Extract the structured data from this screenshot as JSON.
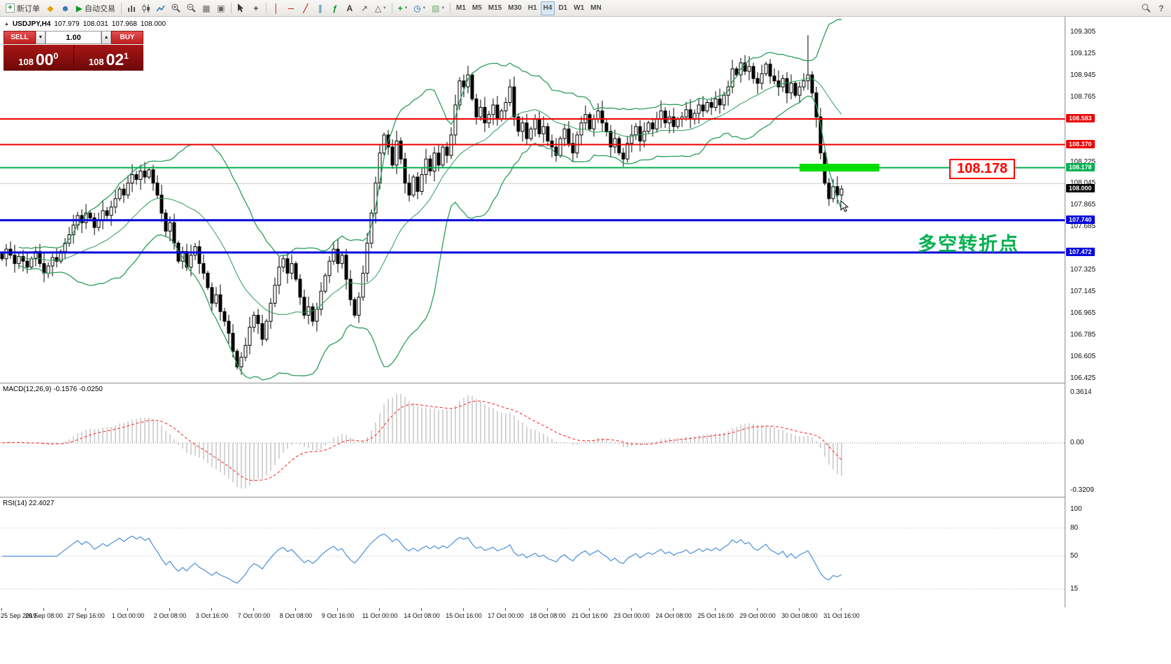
{
  "toolbar": {
    "new_order": "新订单",
    "auto_trading": "自动交易",
    "timeframes": [
      "M1",
      "M5",
      "M15",
      "M30",
      "H1",
      "H4",
      "D1",
      "W1",
      "MN"
    ],
    "active_timeframe": "H4"
  },
  "chart_header": {
    "symbol": "USDJPY,H4",
    "open": "107.979",
    "high": "108.031",
    "low": "107.968",
    "close": "108.000"
  },
  "trade_panel": {
    "sell_label": "SELL",
    "buy_label": "BUY",
    "volume": "1.00",
    "spin_down": "▼",
    "spin_up": "▲",
    "sell_price": {
      "big": "108",
      "pips": "00",
      "sup": "0"
    },
    "buy_price": {
      "big": "108",
      "pips": "02",
      "sup": "1"
    }
  },
  "annotations": {
    "price_label": "108.178",
    "note_text": "多空转折点"
  },
  "price_axis": {
    "labels": [
      "109.305",
      "109.125",
      "108.945",
      "108.765",
      "108.225",
      "108.045",
      "107.865",
      "107.685",
      "107.325",
      "107.145",
      "106.965",
      "106.785",
      "106.605",
      "106.425"
    ],
    "badges": [
      {
        "value": "108.583",
        "color": "#ee0000"
      },
      {
        "value": "108.370",
        "color": "#ee0000"
      },
      {
        "value": "108.178",
        "color": "#00b050"
      },
      {
        "value": "108.000",
        "color": "#000000"
      },
      {
        "value": "107.740",
        "color": "#0000dd"
      },
      {
        "value": "107.472",
        "color": "#0000dd"
      }
    ]
  },
  "macd_panel": {
    "label": "MACD(12,26,9) -0.1576 -0.0250",
    "axis_top": "0.3614",
    "axis_zero": "0.00",
    "axis_bottom": "-0.3209"
  },
  "rsi_panel": {
    "label": "RSI(14) 22.4027",
    "axis": [
      "100",
      "80",
      "50",
      "15"
    ],
    "levels": [
      80,
      50,
      15
    ]
  },
  "time_axis": [
    "25 Sep 2019",
    "26 Sep 08:00",
    "27 Sep 16:00",
    "1 Oct 00:00",
    "2 Oct 08:00",
    "3 Oct 16:00",
    "7 Oct 00:00",
    "8 Oct 08:00",
    "9 Oct 16:00",
    "11 Oct 00:00",
    "14 Oct 08:00",
    "15 Oct 16:00",
    "17 Oct 00:00",
    "18 Oct 08:00",
    "21 Oct 16:00",
    "23 Oct 00:00",
    "24 Oct 08:00",
    "25 Oct 16:00",
    "29 Oct 00:00",
    "30 Oct 08:00",
    "31 Oct 16:00"
  ],
  "colors": {
    "bull": "#ffffff",
    "bear": "#000000",
    "bollinger": "#2a9d5c",
    "macd_hist": "#a8a8a8",
    "macd_signal": "#ff2020",
    "rsi_line": "#4a90d9",
    "highlight": "#00dd00",
    "note_green": "#00b050",
    "label_red": "#ff0000"
  },
  "chart_data": {
    "type": "candlestick",
    "symbol": "USDJPY",
    "timeframe": "H4",
    "title": "USDJPY,H4 107.979 108.031 107.968 108.000",
    "y_range": {
      "min": 106.4,
      "max": 109.41
    },
    "closes": [
      107.42,
      107.5,
      107.45,
      107.38,
      107.44,
      107.4,
      107.35,
      107.42,
      107.48,
      107.38,
      107.3,
      107.36,
      107.43,
      107.4,
      107.48,
      107.55,
      107.62,
      107.7,
      107.78,
      107.72,
      107.8,
      107.76,
      107.68,
      107.74,
      107.82,
      107.78,
      107.85,
      107.92,
      108.0,
      107.95,
      108.05,
      108.12,
      108.08,
      108.15,
      108.1,
      108.16,
      108.05,
      107.95,
      107.8,
      107.65,
      107.72,
      107.55,
      107.4,
      107.48,
      107.35,
      107.45,
      107.52,
      107.38,
      107.3,
      107.18,
      107.05,
      107.12,
      106.98,
      106.9,
      106.8,
      106.65,
      106.52,
      106.6,
      106.7,
      106.85,
      106.95,
      106.88,
      106.75,
      106.9,
      107.05,
      107.2,
      107.35,
      107.42,
      107.3,
      107.38,
      107.25,
      107.1,
      106.95,
      107.02,
      106.9,
      107.0,
      107.15,
      107.28,
      107.4,
      107.5,
      107.38,
      107.45,
      107.25,
      107.08,
      106.95,
      107.1,
      107.3,
      107.55,
      107.8,
      108.05,
      108.3,
      108.45,
      108.35,
      108.2,
      108.4,
      108.25,
      108.05,
      107.95,
      108.1,
      107.98,
      108.12,
      108.25,
      108.15,
      108.3,
      108.2,
      108.35,
      108.28,
      108.45,
      108.7,
      108.9,
      108.85,
      108.95,
      108.75,
      108.6,
      108.68,
      108.55,
      108.62,
      108.7,
      108.58,
      108.65,
      108.72,
      108.85,
      108.6,
      108.48,
      108.55,
      108.42,
      108.5,
      108.58,
      108.46,
      108.52,
      108.4,
      108.35,
      108.28,
      108.42,
      108.5,
      108.38,
      108.3,
      108.45,
      108.55,
      108.62,
      108.5,
      108.58,
      108.65,
      108.55,
      108.48,
      108.35,
      108.42,
      108.3,
      108.25,
      108.38,
      108.45,
      108.52,
      108.4,
      108.48,
      108.55,
      108.5,
      108.58,
      108.65,
      108.55,
      108.6,
      108.52,
      108.58,
      108.6,
      108.66,
      108.58,
      108.63,
      108.7,
      108.65,
      108.72,
      108.68,
      108.75,
      108.7,
      108.78,
      108.85,
      109.0,
      108.95,
      109.05,
      108.98,
      109.02,
      108.92,
      108.88,
      108.96,
      109.04,
      108.94,
      108.9,
      108.85,
      108.92,
      108.8,
      108.88,
      108.78,
      108.85,
      108.9,
      108.95,
      108.8,
      108.6,
      108.3,
      108.05,
      107.92,
      108.02,
      107.95,
      108.0
    ],
    "wick_overrides": {
      "192": {
        "high": 109.28
      },
      "197": {
        "low": 107.86
      }
    },
    "overlays": {
      "gridlines": [
        108.045
      ],
      "bollinger": {
        "period": 20,
        "deviation": 2,
        "color": "#2a9d5c"
      },
      "hlines": [
        {
          "price": 108.583,
          "color": "#ee0000",
          "width": 2
        },
        {
          "price": 108.37,
          "color": "#ee0000",
          "width": 2
        },
        {
          "price": 108.178,
          "color": "#00b050",
          "width": 2
        },
        {
          "price": 107.74,
          "color": "#0000dd",
          "width": 3
        },
        {
          "price": 107.472,
          "color": "#0000dd",
          "width": 3
        }
      ],
      "highlight_rect": {
        "price": 108.178,
        "x1_bar": 190,
        "x2_bar": 209,
        "color": "#00dd00",
        "height": 11
      }
    },
    "indicators": [
      {
        "type": "MACD",
        "fast": 12,
        "slow": 26,
        "signal": 9,
        "value": "-0.1576",
        "signal_value": "-0.0250"
      },
      {
        "type": "RSI",
        "period": 14,
        "value": "22.4027"
      }
    ]
  }
}
